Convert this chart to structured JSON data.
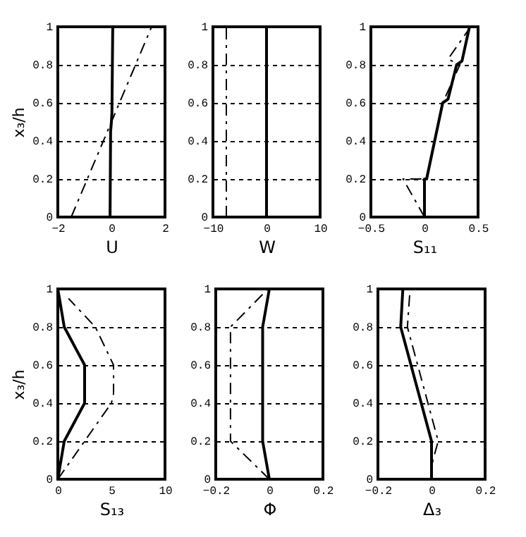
{
  "chart_data": [
    {
      "type": "line",
      "xlabel": "U",
      "ylabel": "x₃/h",
      "xlim": [
        -2,
        2
      ],
      "xticks": [
        -2,
        0,
        2
      ],
      "ylim": [
        0,
        1
      ],
      "yticks": [
        0,
        0.2,
        0.4,
        0.6,
        0.8,
        1
      ],
      "grid": "y",
      "series": [
        {
          "color": "#000000",
          "line_style": "solid",
          "x": [
            -0.05,
            -0.03,
            0,
            0.02,
            0.05
          ],
          "values": [
            0,
            0.45,
            0.5,
            0.55,
            1
          ]
        },
        {
          "color": "#000000",
          "line_style": "dashed",
          "x": [
            -1.5,
            0,
            1.5
          ],
          "values": [
            0,
            0.5,
            1
          ]
        }
      ]
    },
    {
      "type": "line",
      "xlabel": "W",
      "xlim": [
        -10,
        10
      ],
      "xticks": [
        -10,
        0,
        10
      ],
      "ylim": [
        0,
        1
      ],
      "yticks": [
        0,
        0.2,
        0.4,
        0.6,
        0.8,
        1
      ],
      "grid": "y",
      "series": [
        {
          "color": "#000000",
          "line_style": "solid",
          "x": [
            0,
            0
          ],
          "values": [
            0,
            1
          ]
        },
        {
          "color": "#000000",
          "line_style": "dashed",
          "x": [
            -7.5,
            -7.5
          ],
          "values": [
            0,
            1
          ]
        }
      ]
    },
    {
      "type": "line",
      "xlabel": "S₁₁",
      "xlim": [
        -0.5,
        0.5
      ],
      "xticks": [
        -0.5,
        0,
        0.5
      ],
      "ylim": [
        0,
        1
      ],
      "yticks": [
        0,
        0.2,
        0.4,
        0.6,
        0.8,
        1
      ],
      "grid": "y",
      "series": [
        {
          "color": "#000000",
          "line_style": "solid",
          "x": [
            0,
            0,
            0.02,
            0.17,
            0.22,
            0.3,
            0.35,
            0.42
          ],
          "values": [
            0,
            0.2,
            0.2,
            0.6,
            0.62,
            0.8,
            0.82,
            1
          ]
        },
        {
          "color": "#000000",
          "line_style": "dashed",
          "x": [
            0,
            -0.2,
            0.02,
            0.17,
            0.33,
            0.22,
            0.43
          ],
          "values": [
            0,
            0.2,
            0.2,
            0.6,
            0.8,
            0.83,
            1
          ]
        }
      ]
    },
    {
      "type": "line",
      "xlabel": "S₁₃",
      "ylabel": "x₃/h",
      "xlim": [
        0,
        10
      ],
      "xticks": [
        0,
        5,
        10
      ],
      "ylim": [
        0,
        1
      ],
      "yticks": [
        0,
        0.2,
        0.4,
        0.6,
        0.8,
        1
      ],
      "grid": "y",
      "series": [
        {
          "color": "#000000",
          "line_style": "solid",
          "x": [
            0,
            0.6,
            2.5,
            2.5,
            0.6,
            0
          ],
          "values": [
            0,
            0.2,
            0.4,
            0.6,
            0.8,
            1
          ]
        },
        {
          "color": "#000000",
          "line_style": "dashed",
          "x": [
            0,
            2.5,
            5,
            5.2,
            5.2,
            3.5,
            1
          ],
          "values": [
            0,
            0.2,
            0.4,
            0.45,
            0.6,
            0.8,
            0.95
          ]
        }
      ]
    },
    {
      "type": "line",
      "xlabel": "Φ",
      "xlim": [
        -0.2,
        0.2
      ],
      "xticks": [
        -0.2,
        0,
        0.2
      ],
      "ylim": [
        0,
        1
      ],
      "yticks": [
        0,
        0.2,
        0.4,
        0.6,
        0.8,
        1
      ],
      "grid": "y",
      "series": [
        {
          "color": "#000000",
          "line_style": "solid",
          "x": [
            0,
            -0.025,
            -0.025,
            0
          ],
          "values": [
            0,
            0.2,
            0.8,
            1
          ]
        },
        {
          "color": "#000000",
          "line_style": "dashed",
          "x": [
            0,
            -0.145,
            -0.145,
            -0.005
          ],
          "values": [
            0,
            0.2,
            0.8,
            1
          ]
        }
      ]
    },
    {
      "type": "line",
      "xlabel": "Δ₃",
      "xlim": [
        -0.2,
        0.2
      ],
      "xticks": [
        -0.2,
        0,
        0.2
      ],
      "ylim": [
        0,
        1
      ],
      "yticks": [
        0,
        0.2,
        0.4,
        0.6,
        0.8,
        1
      ],
      "grid": "y",
      "series": [
        {
          "color": "#000000",
          "line_style": "solid",
          "x": [
            0,
            0,
            -0.115,
            -0.107
          ],
          "values": [
            0,
            0.2,
            0.8,
            1
          ]
        },
        {
          "color": "#000000",
          "line_style": "dashed",
          "x": [
            0,
            0.005,
            0.025,
            -0.09,
            -0.08
          ],
          "values": [
            0,
            0.1,
            0.2,
            0.8,
            1
          ]
        }
      ]
    }
  ]
}
